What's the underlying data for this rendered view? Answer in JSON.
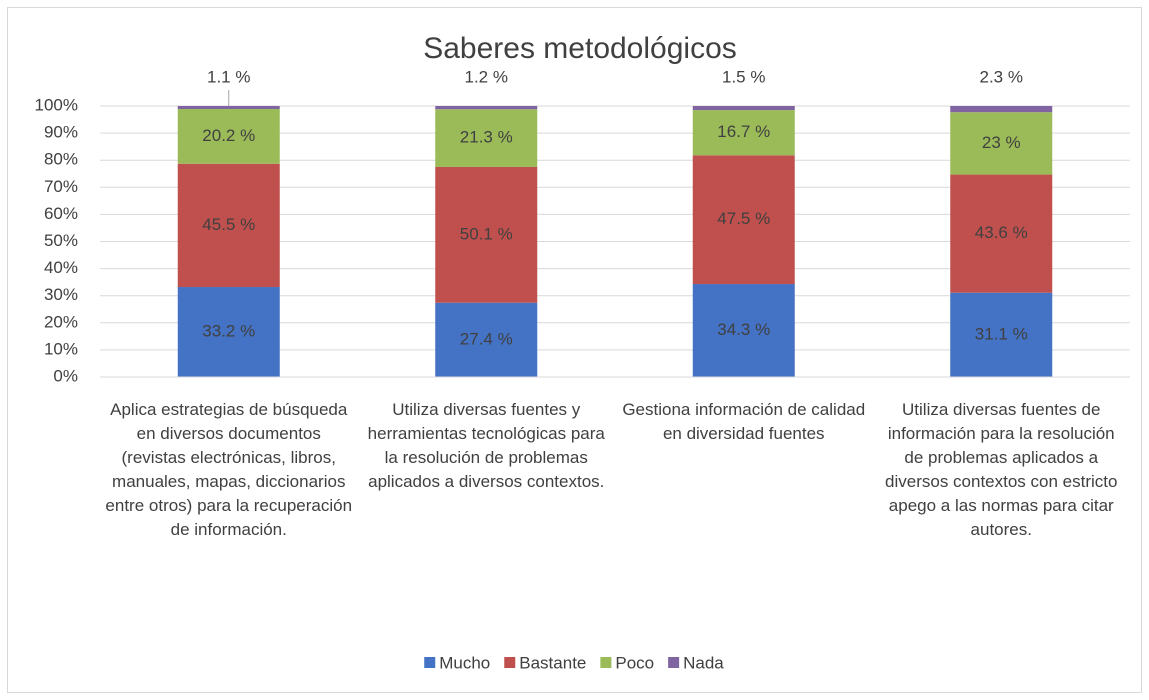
{
  "chart_data": {
    "type": "stacked_bar",
    "title": "Saberes metodológicos",
    "categories": [
      "Aplica estrategias de búsqueda en diversos documentos (revistas electrónicas, libros, manuales, mapas, diccionarios entre otros) para la recuperación de información.",
      "Utiliza diversas fuentes y herramientas tecnológicas para la resolución de problemas aplicados a diversos contextos.",
      "Gestiona información de calidad en diversidad fuentes",
      "Utiliza diversas fuentes de información para la resolución de problemas aplicados a diversos contextos con estricto apego a las normas para citar autores."
    ],
    "series": [
      {
        "name": "Mucho",
        "color": "#4472c4",
        "values": [
          33.2,
          27.4,
          34.3,
          31.1
        ],
        "value_labels": [
          "33.2 %",
          "27.4 %",
          "34.3 %",
          "31.1 %"
        ]
      },
      {
        "name": "Bastante",
        "color": "#c0504d",
        "values": [
          45.5,
          50.1,
          47.5,
          43.6
        ],
        "value_labels": [
          "45.5 %",
          "50.1 %",
          "47.5 %",
          "43.6 %"
        ]
      },
      {
        "name": "Poco",
        "color": "#9bbb59",
        "values": [
          20.2,
          21.3,
          16.7,
          23
        ],
        "value_labels": [
          "20.2 %",
          "21.3 %",
          "16.7 %",
          "23 %"
        ]
      },
      {
        "name": "Nada",
        "color": "#8064a2",
        "values": [
          1.1,
          1.2,
          1.5,
          2.3
        ],
        "value_labels": [
          "1.1 %",
          "1.2 %",
          "1.5 %",
          "2.3 %"
        ]
      }
    ],
    "ylim": [
      0,
      100
    ],
    "yticks": [
      {
        "value": 0,
        "label": "0%"
      },
      {
        "value": 10,
        "label": "10%"
      },
      {
        "value": 20,
        "label": "20%"
      },
      {
        "value": 30,
        "label": "30%"
      },
      {
        "value": 40,
        "label": "40%"
      },
      {
        "value": 50,
        "label": "50%"
      },
      {
        "value": 60,
        "label": "60%"
      },
      {
        "value": 70,
        "label": "70%"
      },
      {
        "value": 80,
        "label": "80%"
      },
      {
        "value": 90,
        "label": "90%"
      },
      {
        "value": 100,
        "label": "100%"
      }
    ],
    "grid": true,
    "legend": "bottom"
  }
}
